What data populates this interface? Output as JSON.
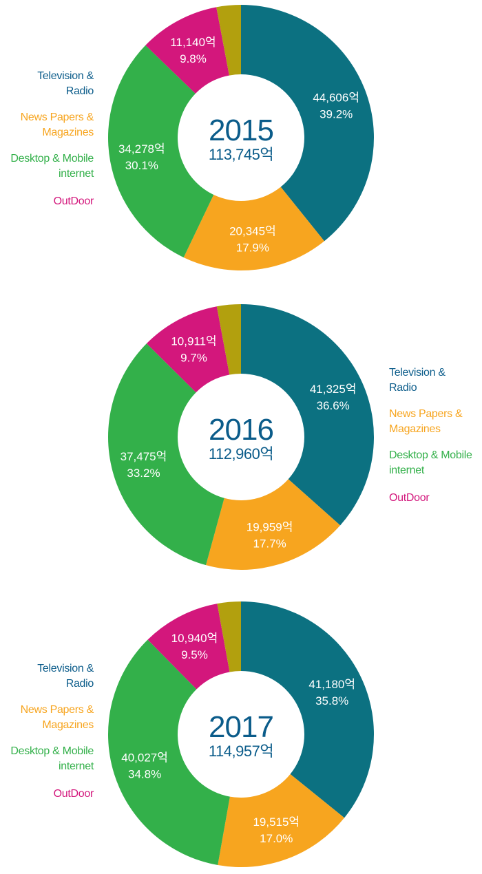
{
  "colors": {
    "tv": "#0c7181",
    "news": "#f7a51f",
    "web": "#33b04a",
    "outdoor": "#d3177c",
    "other": "#b2a00e",
    "tv_text": "#0b5c8a",
    "center_text": "#0b5c8a"
  },
  "legend": {
    "tv": [
      "Television &",
      "Radio"
    ],
    "news": [
      "News Papers &",
      "Magazines"
    ],
    "web": [
      "Desktop & Mobile",
      "internet"
    ],
    "outdoor": [
      "OutDoor"
    ]
  },
  "chart_data": [
    {
      "type": "pie",
      "year": "2015",
      "total": "113,745억",
      "legend_side": "left",
      "slices": [
        {
          "key": "tv",
          "name": "Television & Radio",
          "value": 44606,
          "value_label": "44,606억",
          "pct": 39.2,
          "pct_label": "39.2%"
        },
        {
          "key": "news",
          "name": "News Papers & Magazines",
          "value": 20345,
          "value_label": "20,345억",
          "pct": 17.9,
          "pct_label": "17.9%"
        },
        {
          "key": "web",
          "name": "Desktop & Mobile internet",
          "value": 34278,
          "value_label": "34,278억",
          "pct": 30.1,
          "pct_label": "30.1%"
        },
        {
          "key": "outdoor",
          "name": "OutDoor",
          "value": 11140,
          "value_label": "11,140억",
          "pct": 9.8,
          "pct_label": "9.8%"
        },
        {
          "key": "other",
          "name": "",
          "value": 3376,
          "value_label": "",
          "pct": 3.0,
          "pct_label": ""
        }
      ]
    },
    {
      "type": "pie",
      "year": "2016",
      "total": "112,960억",
      "legend_side": "right",
      "slices": [
        {
          "key": "tv",
          "name": "Television & Radio",
          "value": 41325,
          "value_label": "41,325억",
          "pct": 36.6,
          "pct_label": "36.6%"
        },
        {
          "key": "news",
          "name": "News Papers & Magazines",
          "value": 19959,
          "value_label": "19,959억",
          "pct": 17.7,
          "pct_label": "17.7%"
        },
        {
          "key": "web",
          "name": "Desktop & Mobile internet",
          "value": 37475,
          "value_label": "37,475억",
          "pct": 33.2,
          "pct_label": "33.2%"
        },
        {
          "key": "outdoor",
          "name": "OutDoor",
          "value": 10911,
          "value_label": "10,911억",
          "pct": 9.7,
          "pct_label": "9.7%"
        },
        {
          "key": "other",
          "name": "",
          "value": 3290,
          "value_label": "",
          "pct": 2.9,
          "pct_label": ""
        }
      ]
    },
    {
      "type": "pie",
      "year": "2017",
      "total": "114,957억",
      "legend_side": "left",
      "slices": [
        {
          "key": "tv",
          "name": "Television & Radio",
          "value": 41180,
          "value_label": "41,180억",
          "pct": 35.8,
          "pct_label": "35.8%"
        },
        {
          "key": "news",
          "name": "News Papers & Magazines",
          "value": 19515,
          "value_label": "19,515억",
          "pct": 17.0,
          "pct_label": "17.0%"
        },
        {
          "key": "web",
          "name": "Desktop & Mobile internet",
          "value": 40027,
          "value_label": "40,027억",
          "pct": 34.8,
          "pct_label": "34.8%"
        },
        {
          "key": "outdoor",
          "name": "OutDoor",
          "value": 10940,
          "value_label": "10,940억",
          "pct": 9.5,
          "pct_label": "9.5%"
        },
        {
          "key": "other",
          "name": "",
          "value": 3295,
          "value_label": "",
          "pct": 2.9,
          "pct_label": ""
        }
      ]
    }
  ]
}
